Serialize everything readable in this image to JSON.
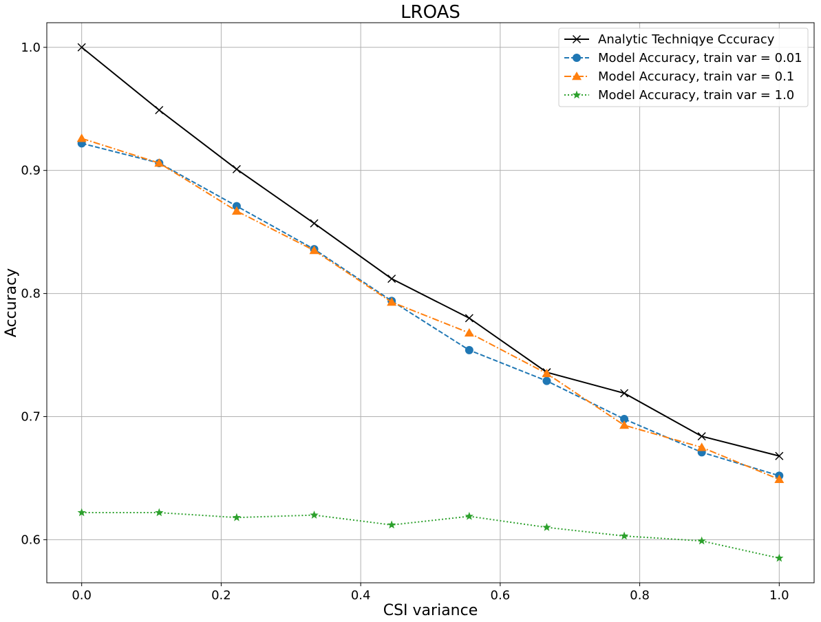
{
  "chart_data": {
    "type": "line",
    "title": "LROAS",
    "xlabel": "CSI variance",
    "ylabel": "Accuracy",
    "xlim": [
      -0.05,
      1.05
    ],
    "ylim": [
      0.565,
      1.02
    ],
    "x_ticks": [
      0.0,
      0.2,
      0.4,
      0.6,
      0.8,
      1.0
    ],
    "x_tick_labels": [
      "0.0",
      "0.2",
      "0.4",
      "0.6",
      "0.8",
      "1.0"
    ],
    "y_ticks": [
      0.6,
      0.7,
      0.8,
      0.9,
      1.0
    ],
    "y_tick_labels": [
      "0.6",
      "0.7",
      "0.8",
      "0.9",
      "1.0"
    ],
    "grid": true,
    "legend_position": "top-right",
    "x": [
      0.0,
      0.1111,
      0.2222,
      0.3333,
      0.4444,
      0.5556,
      0.6667,
      0.7778,
      0.8889,
      1.0
    ],
    "series": [
      {
        "name": "Analytic Techniqye Cccuracy",
        "color": "#000000",
        "line_style": "solid",
        "marker": "x",
        "values": [
          1.0,
          0.949,
          0.901,
          0.857,
          0.812,
          0.78,
          0.736,
          0.719,
          0.684,
          0.668
        ]
      },
      {
        "name": "Model Accuracy, train var = 0.01",
        "color": "#1f77b4",
        "line_style": "dashed",
        "marker": "circle",
        "values": [
          0.922,
          0.906,
          0.871,
          0.836,
          0.794,
          0.754,
          0.729,
          0.698,
          0.671,
          0.652
        ]
      },
      {
        "name": "Model Accuracy, train var = 0.1",
        "color": "#ff7f0e",
        "line_style": "dashdot",
        "marker": "triangle",
        "values": [
          0.926,
          0.906,
          0.867,
          0.835,
          0.793,
          0.768,
          0.735,
          0.693,
          0.675,
          0.649
        ]
      },
      {
        "name": "Model Accuracy, train var = 1.0",
        "color": "#2ca02c",
        "line_style": "dotted",
        "marker": "star",
        "values": [
          0.622,
          0.622,
          0.618,
          0.62,
          0.612,
          0.619,
          0.61,
          0.603,
          0.599,
          0.585
        ]
      }
    ]
  }
}
